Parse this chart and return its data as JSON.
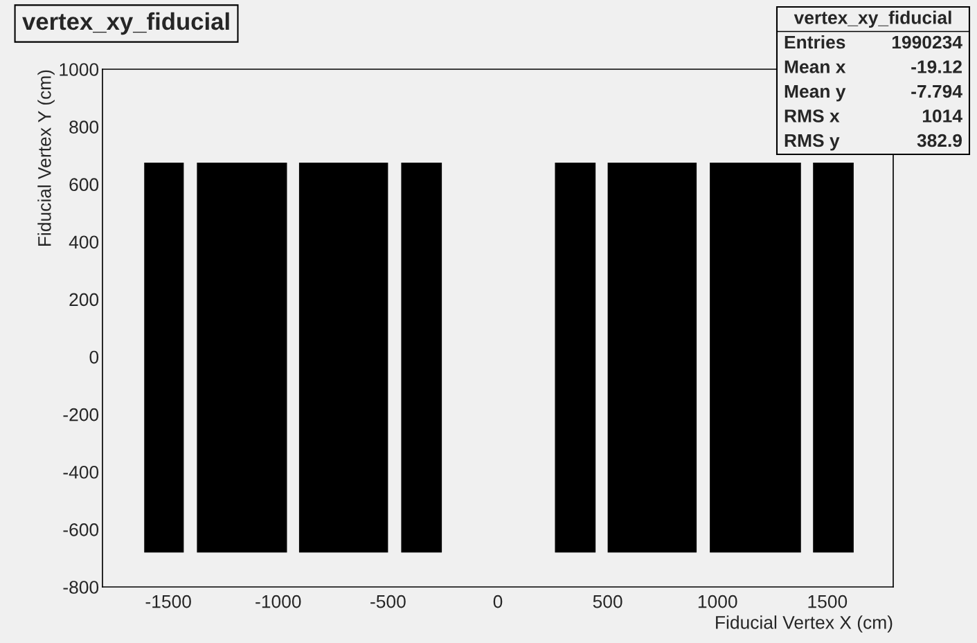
{
  "chart_data": {
    "type": "area",
    "title": "vertex_xy_fiducial",
    "xlabel": "Fiducial Vertex X (cm)",
    "ylabel": "Fiducial Vertex Y (cm)",
    "xlim": [
      -1800,
      1800
    ],
    "xticks": [
      -1500,
      -1000,
      -500,
      0,
      500,
      1000,
      1500
    ],
    "ylim": [
      -800,
      1000
    ],
    "yticks": [
      -800,
      -600,
      -400,
      -200,
      0,
      200,
      400,
      600,
      800,
      1000
    ],
    "grid": false,
    "series": [
      {
        "color": "#000000",
        "x": [
          -1610,
          -1430,
          -1430,
          -1610
        ],
        "values": [
          675,
          675,
          -680,
          -680
        ]
      },
      {
        "color": "#000000",
        "x": [
          -1370,
          -960,
          -960,
          -1370
        ],
        "values": [
          675,
          675,
          -680,
          -680
        ]
      },
      {
        "color": "#000000",
        "x": [
          -905,
          -500,
          -500,
          -905
        ],
        "values": [
          675,
          675,
          -680,
          -680
        ]
      },
      {
        "color": "#000000",
        "x": [
          -440,
          -255,
          -255,
          -440
        ],
        "values": [
          675,
          675,
          -680,
          -680
        ]
      },
      {
        "color": "#000000",
        "x": [
          260,
          445,
          445,
          260
        ],
        "values": [
          675,
          675,
          -680,
          -680
        ]
      },
      {
        "color": "#000000",
        "x": [
          500,
          905,
          905,
          500
        ],
        "values": [
          675,
          675,
          -680,
          -680
        ]
      },
      {
        "color": "#000000",
        "x": [
          965,
          1380,
          1380,
          965
        ],
        "values": [
          675,
          675,
          -680,
          -680
        ]
      },
      {
        "color": "#000000",
        "x": [
          1435,
          1620,
          1620,
          1435
        ],
        "values": [
          675,
          675,
          -680,
          -680
        ]
      }
    ],
    "annotations": [
      "vertex_xy_fiducial",
      "Entries\t1990234",
      "Mean x\t-19.12",
      "Mean y\t-7.794",
      "RMS x\t1014",
      "RMS y\t382.9"
    ]
  }
}
